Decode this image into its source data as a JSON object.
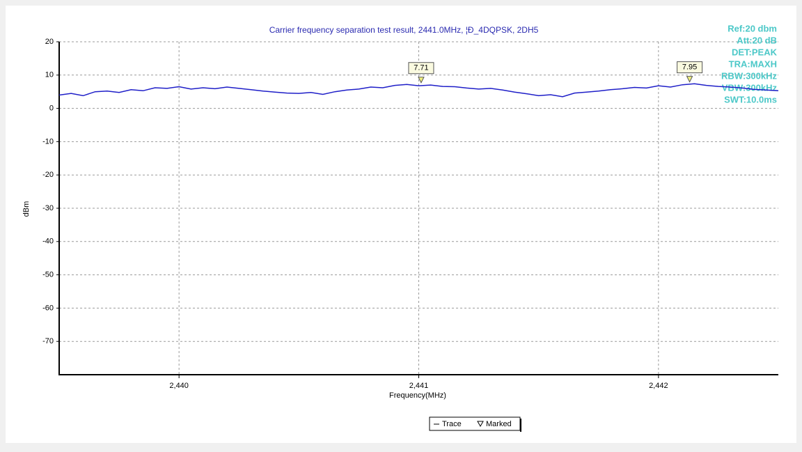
{
  "chart_data": {
    "type": "line",
    "title": "Carrier frequency separation test result, 2441.0MHz, ¦Ð_4DQPSK, 2DH5",
    "x_label": "Frequency(MHz)",
    "y_label": "dBm",
    "info": [
      "Ref:20 dbm",
      "Att:20 dB",
      "DET:PEAK",
      "TRA:MAXH",
      "RBW:300kHz",
      "VBW:300kHz",
      "SWT:10.0ms"
    ],
    "xlim": [
      2439.5,
      2442.5
    ],
    "xticks": [
      {
        "value": 2440,
        "label": "2,440"
      },
      {
        "value": 2441,
        "label": "2,441"
      },
      {
        "value": 2442,
        "label": "2,442"
      }
    ],
    "ylim": [
      -80,
      20
    ],
    "yticks": [
      20,
      10,
      0,
      -10,
      -20,
      -30,
      -40,
      -50,
      -60,
      -70
    ],
    "grid": true,
    "series": [
      {
        "name": "Trace",
        "color": "#1e1ec8",
        "x": [
          2439.5,
          2439.55,
          2439.6,
          2439.65,
          2439.7,
          2439.75,
          2439.8,
          2439.85,
          2439.9,
          2439.95,
          2440,
          2440.05,
          2440.1,
          2440.15,
          2440.2,
          2440.25,
          2440.3,
          2440.35,
          2440.4,
          2440.45,
          2440.5,
          2440.55,
          2440.6,
          2440.65,
          2440.7,
          2440.75,
          2440.8,
          2440.85,
          2440.9,
          2440.95,
          2441,
          2441.05,
          2441.1,
          2441.15,
          2441.2,
          2441.25,
          2441.3,
          2441.35,
          2441.4,
          2441.45,
          2441.5,
          2441.55,
          2441.6,
          2441.65,
          2441.7,
          2441.75,
          2441.8,
          2441.85,
          2441.9,
          2441.95,
          2442,
          2442.05,
          2442.1,
          2442.15,
          2442.2,
          2442.25,
          2442.3,
          2442.35,
          2442.4,
          2442.45,
          2442.5
        ],
        "values": [
          4.0,
          4.5,
          3.8,
          5.0,
          5.2,
          4.8,
          5.6,
          5.3,
          6.2,
          6.0,
          6.5,
          5.8,
          6.2,
          5.9,
          6.4,
          6.0,
          5.6,
          5.2,
          4.9,
          4.6,
          4.5,
          4.8,
          4.2,
          5.0,
          5.5,
          5.8,
          6.4,
          6.2,
          6.9,
          7.2,
          6.8,
          7.0,
          6.6,
          6.5,
          6.1,
          5.8,
          6.0,
          5.5,
          4.9,
          4.4,
          3.8,
          4.1,
          3.5,
          4.6,
          4.9,
          5.2,
          5.6,
          5.9,
          6.3,
          6.1,
          6.8,
          6.4,
          7.1,
          7.4,
          6.9,
          6.6,
          6.4,
          6.1,
          5.7,
          5.5,
          5.3
        ]
      }
    ],
    "marker_name": "Marked",
    "markers": [
      {
        "x": 2441.01,
        "value": 7.71
      },
      {
        "x": 2442.13,
        "value": 7.95
      }
    ]
  }
}
